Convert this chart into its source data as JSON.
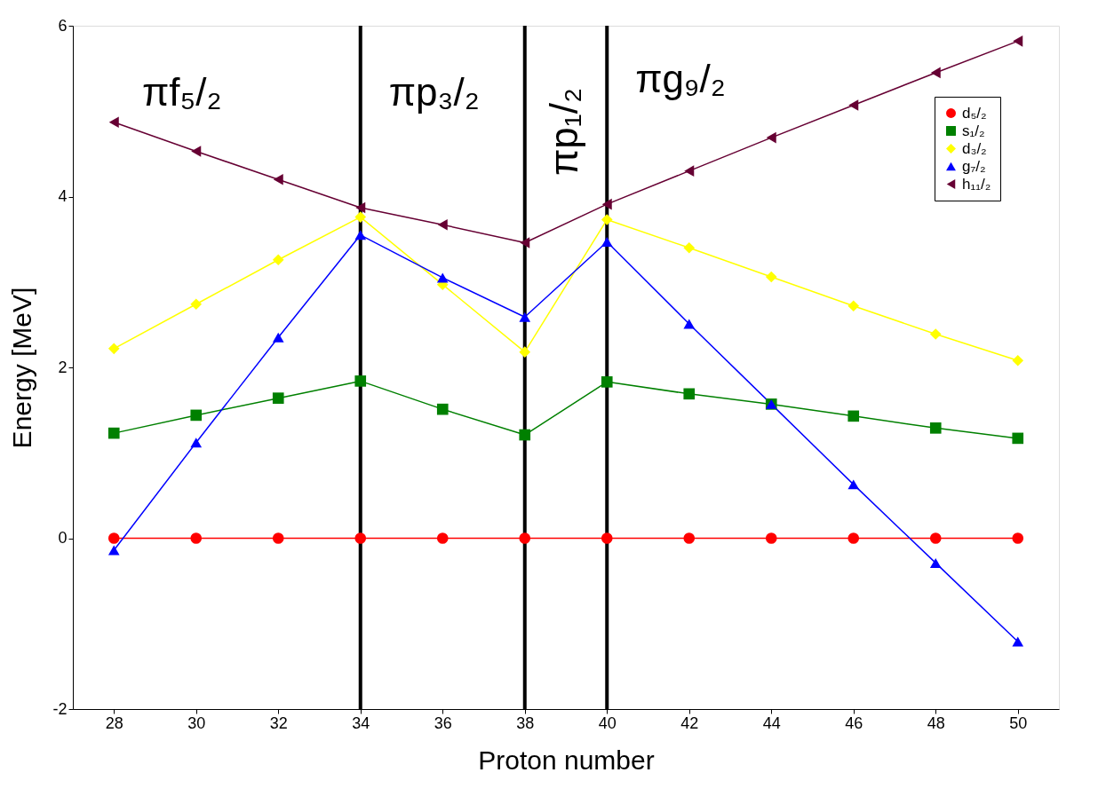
{
  "chart_data": {
    "type": "line",
    "xlabel": "Proton number",
    "ylabel": "Energy [MeV]",
    "x": [
      28,
      30,
      32,
      34,
      36,
      38,
      40,
      42,
      44,
      46,
      48,
      50
    ],
    "xlim": [
      27,
      51
    ],
    "xticks": [
      28,
      30,
      32,
      34,
      36,
      38,
      40,
      42,
      44,
      46,
      48,
      50
    ],
    "ylim": [
      -2,
      6
    ],
    "yticks": [
      -2,
      0,
      2,
      4,
      6
    ],
    "grid": false,
    "legend": "top right",
    "series": [
      {
        "name": "d₅/₂",
        "color": "#ff0000",
        "marker": "circle",
        "values": [
          0,
          0,
          0,
          0,
          0,
          0,
          0,
          0,
          0,
          0,
          0,
          0
        ]
      },
      {
        "name": "s₁/₂",
        "color": "#008000",
        "marker": "square",
        "values": [
          1.23,
          1.44,
          1.64,
          1.84,
          1.51,
          1.21,
          1.83,
          1.69,
          1.57,
          1.43,
          1.29,
          1.17
        ]
      },
      {
        "name": "d₃/₂",
        "color": "#ffff00",
        "marker": "diamond",
        "values": [
          2.22,
          2.74,
          3.26,
          3.76,
          2.97,
          2.18,
          3.73,
          3.4,
          3.06,
          2.72,
          2.39,
          2.08
        ]
      },
      {
        "name": "g₇/₂",
        "color": "#0000ff",
        "marker": "triangle",
        "values": [
          -0.14,
          1.12,
          2.35,
          3.55,
          3.05,
          2.59,
          3.47,
          2.51,
          1.57,
          0.63,
          -0.29,
          -1.21
        ]
      },
      {
        "name": "h₁₁/₂",
        "color": "#660033",
        "marker": "triangle-left",
        "values": [
          4.87,
          4.53,
          4.2,
          3.87,
          3.67,
          3.46,
          3.91,
          4.3,
          4.69,
          5.07,
          5.45,
          5.82
        ]
      }
    ],
    "ref_lines": [
      {
        "axis": "x",
        "value": 34,
        "color": "#000000"
      },
      {
        "axis": "x",
        "value": 38,
        "color": "#000000"
      },
      {
        "axis": "x",
        "value": 40,
        "color": "#000000"
      }
    ],
    "annotations": [
      "πf₅/₂",
      "πp₃/₂",
      "πp₁/₂",
      "πg₉/₂"
    ]
  }
}
